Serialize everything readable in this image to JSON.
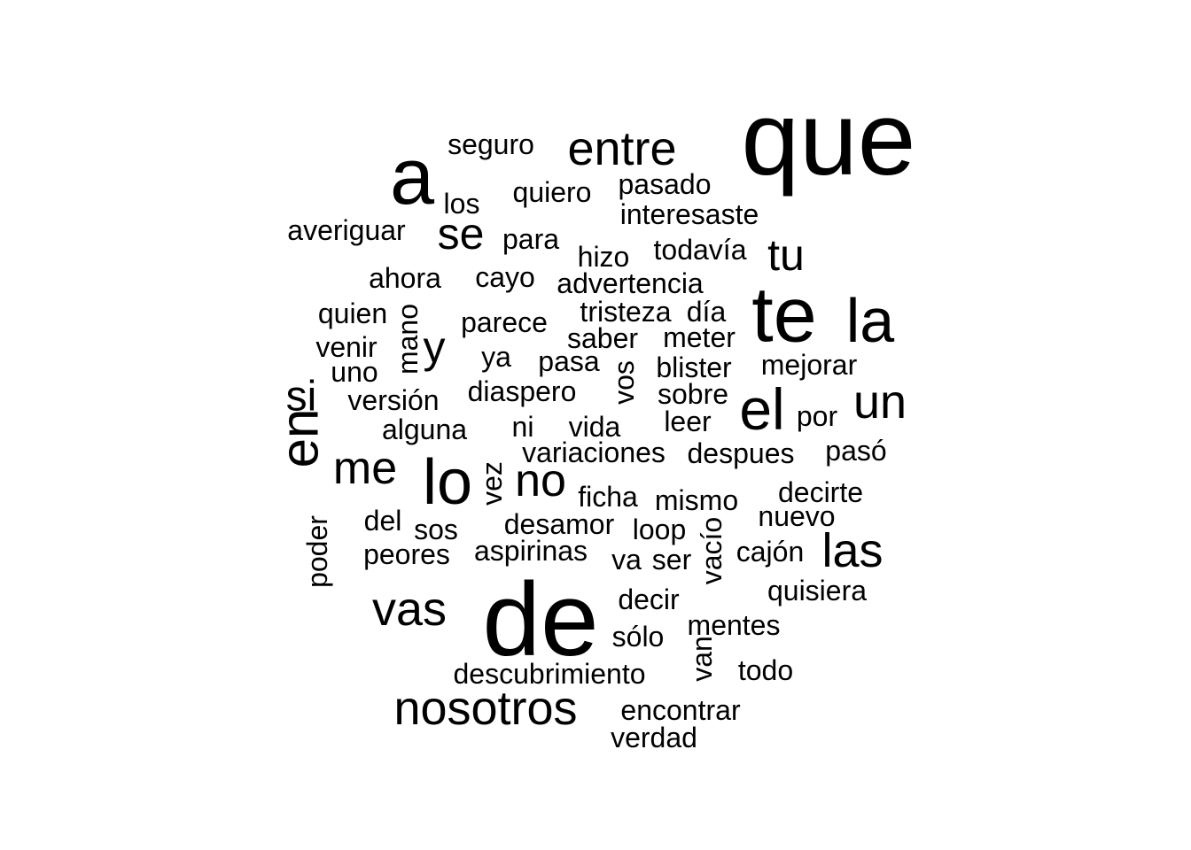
{
  "word_cloud": {
    "text_color": "#000000",
    "background_color": "#ffffff",
    "words": [
      {
        "text": "que",
        "orientation": "horizontal"
      },
      {
        "text": "de",
        "orientation": "horizontal"
      },
      {
        "text": "a",
        "orientation": "horizontal"
      },
      {
        "text": "te",
        "orientation": "horizontal"
      },
      {
        "text": "en",
        "orientation": "vertical"
      },
      {
        "text": "lo",
        "orientation": "horizontal"
      },
      {
        "text": "el",
        "orientation": "horizontal"
      },
      {
        "text": "la",
        "orientation": "horizontal"
      },
      {
        "text": "nosotros",
        "orientation": "horizontal"
      },
      {
        "text": "entre",
        "orientation": "horizontal"
      },
      {
        "text": "no",
        "orientation": "horizontal"
      },
      {
        "text": "un",
        "orientation": "horizontal"
      },
      {
        "text": "vas",
        "orientation": "horizontal"
      },
      {
        "text": "me",
        "orientation": "horizontal"
      },
      {
        "text": "las",
        "orientation": "horizontal"
      },
      {
        "text": "si",
        "orientation": "horizontal"
      },
      {
        "text": "se",
        "orientation": "horizontal"
      },
      {
        "text": "tu",
        "orientation": "horizontal"
      },
      {
        "text": "y",
        "orientation": "horizontal"
      },
      {
        "text": "seguro",
        "orientation": "horizontal"
      },
      {
        "text": "quiero",
        "orientation": "horizontal"
      },
      {
        "text": "pasado",
        "orientation": "horizontal"
      },
      {
        "text": "los",
        "orientation": "horizontal"
      },
      {
        "text": "interesaste",
        "orientation": "horizontal"
      },
      {
        "text": "averiguar",
        "orientation": "horizontal"
      },
      {
        "text": "para",
        "orientation": "horizontal"
      },
      {
        "text": "hizo",
        "orientation": "horizontal"
      },
      {
        "text": "todavía",
        "orientation": "horizontal"
      },
      {
        "text": "ahora",
        "orientation": "horizontal"
      },
      {
        "text": "cayo",
        "orientation": "horizontal"
      },
      {
        "text": "advertencia",
        "orientation": "horizontal"
      },
      {
        "text": "quien",
        "orientation": "horizontal"
      },
      {
        "text": "mano",
        "orientation": "vertical"
      },
      {
        "text": "parece",
        "orientation": "horizontal"
      },
      {
        "text": "tristeza",
        "orientation": "horizontal"
      },
      {
        "text": "día",
        "orientation": "horizontal"
      },
      {
        "text": "venir",
        "orientation": "horizontal"
      },
      {
        "text": "saber",
        "orientation": "horizontal"
      },
      {
        "text": "meter",
        "orientation": "horizontal"
      },
      {
        "text": "ya",
        "orientation": "horizontal"
      },
      {
        "text": "pasa",
        "orientation": "horizontal"
      },
      {
        "text": "uno",
        "orientation": "horizontal"
      },
      {
        "text": "vos",
        "orientation": "vertical"
      },
      {
        "text": "blister",
        "orientation": "horizontal"
      },
      {
        "text": "mejorar",
        "orientation": "horizontal"
      },
      {
        "text": "diaspero",
        "orientation": "horizontal"
      },
      {
        "text": "versión",
        "orientation": "horizontal"
      },
      {
        "text": "sobre",
        "orientation": "horizontal"
      },
      {
        "text": "por",
        "orientation": "horizontal"
      },
      {
        "text": "alguna",
        "orientation": "horizontal"
      },
      {
        "text": "ni",
        "orientation": "horizontal"
      },
      {
        "text": "vida",
        "orientation": "horizontal"
      },
      {
        "text": "leer",
        "orientation": "horizontal"
      },
      {
        "text": "variaciones",
        "orientation": "horizontal"
      },
      {
        "text": "despues",
        "orientation": "horizontal"
      },
      {
        "text": "pasó",
        "orientation": "horizontal"
      },
      {
        "text": "vez",
        "orientation": "vertical"
      },
      {
        "text": "ficha",
        "orientation": "horizontal"
      },
      {
        "text": "mismo",
        "orientation": "horizontal"
      },
      {
        "text": "decirte",
        "orientation": "horizontal"
      },
      {
        "text": "del",
        "orientation": "horizontal"
      },
      {
        "text": "desamor",
        "orientation": "horizontal"
      },
      {
        "text": "nuevo",
        "orientation": "horizontal"
      },
      {
        "text": "poder",
        "orientation": "vertical"
      },
      {
        "text": "sos",
        "orientation": "horizontal"
      },
      {
        "text": "loop",
        "orientation": "horizontal"
      },
      {
        "text": "vacío",
        "orientation": "vertical"
      },
      {
        "text": "peores",
        "orientation": "horizontal"
      },
      {
        "text": "aspirinas",
        "orientation": "horizontal"
      },
      {
        "text": "va",
        "orientation": "horizontal"
      },
      {
        "text": "ser",
        "orientation": "horizontal"
      },
      {
        "text": "cajón",
        "orientation": "horizontal"
      },
      {
        "text": "quisiera",
        "orientation": "horizontal"
      },
      {
        "text": "decir",
        "orientation": "horizontal"
      },
      {
        "text": "mentes",
        "orientation": "horizontal"
      },
      {
        "text": "sólo",
        "orientation": "horizontal"
      },
      {
        "text": "van",
        "orientation": "vertical"
      },
      {
        "text": "descubrimiento",
        "orientation": "horizontal"
      },
      {
        "text": "todo",
        "orientation": "horizontal"
      },
      {
        "text": "encontrar",
        "orientation": "horizontal"
      },
      {
        "text": "verdad",
        "orientation": "horizontal"
      }
    ]
  }
}
